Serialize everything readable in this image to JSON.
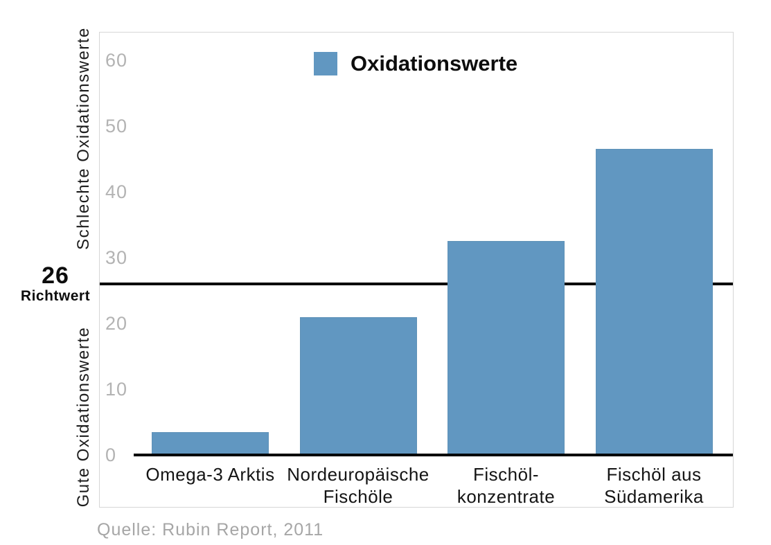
{
  "chart_data": {
    "type": "bar",
    "title": "",
    "legend_label": "Oxidationswerte",
    "legend_position": "top-center",
    "categories": [
      [
        "Omega-3 Arktis"
      ],
      [
        "Nordeuropäische",
        "Fischöle"
      ],
      [
        "Fischöl-",
        "konzentrate"
      ],
      [
        "Fischöl aus",
        "Südamerika"
      ]
    ],
    "values": [
      3.5,
      21,
      32.5,
      46.5
    ],
    "bar_color": "#6197c1",
    "yticks": [
      0,
      10,
      20,
      30,
      40,
      50,
      60
    ],
    "ylim": [
      0,
      63
    ],
    "grid": false,
    "tick_color": "#b3b3b3",
    "axis_color": "#000000",
    "ylabel_upper": "Schlechte Oxidationswerte",
    "ylabel_lower": "Gute Oxidationswerte",
    "reference_line": {
      "value": 26,
      "label_number": "26",
      "label_caption": "Richtwert",
      "color": "#000000"
    },
    "source": "Quelle: Rubin Report, 2011"
  }
}
